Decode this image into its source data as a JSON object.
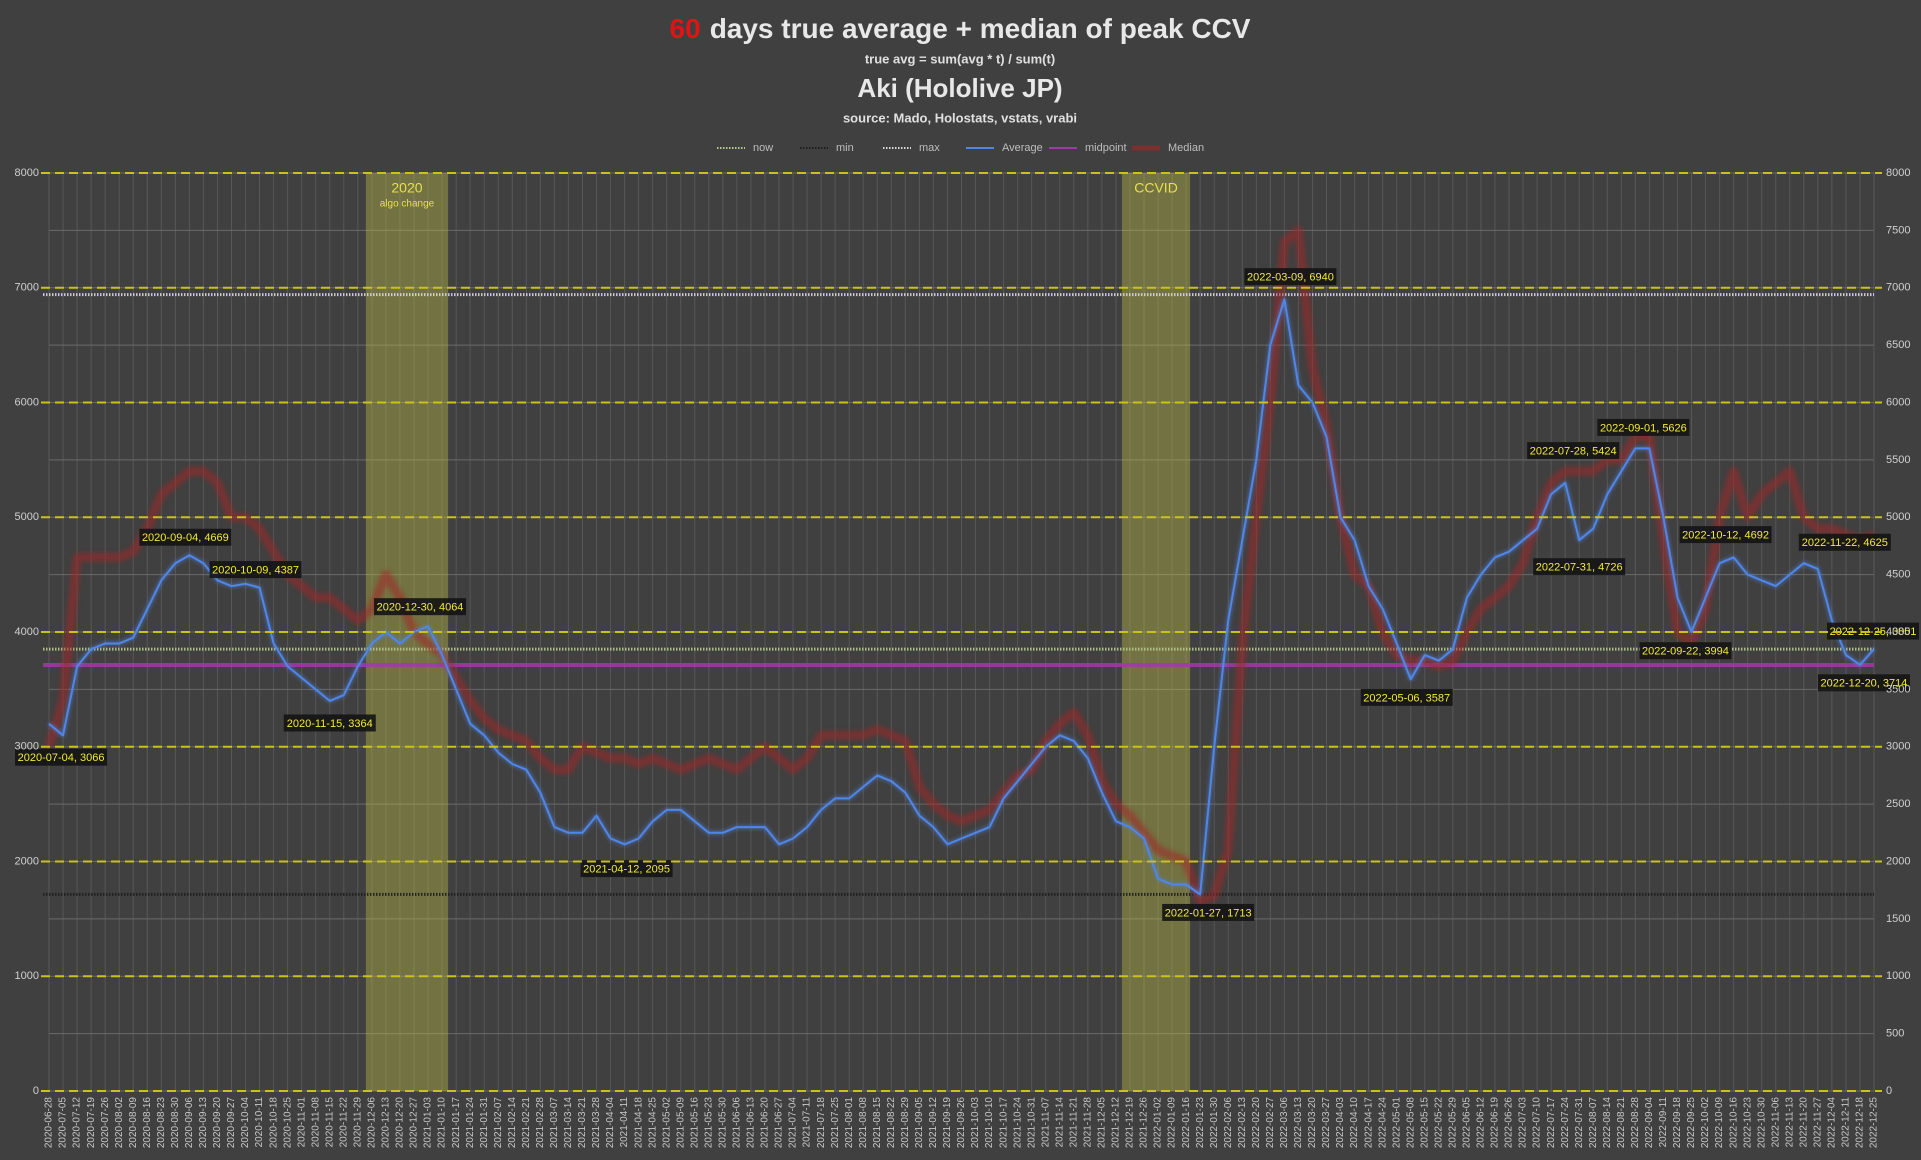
{
  "chart_data": {
    "type": "line",
    "title_highlight": "60",
    "title": "days true average + median of peak CCV",
    "subtitle": "true avg = sum(avg * t) / sum(t)",
    "channel": "Aki (Hololive JP)",
    "source": "source: Mado, Holostats, vstats, vrabi",
    "ylim": [
      0,
      8000
    ],
    "yticks": [
      0,
      1000,
      2000,
      3000,
      4000,
      5000,
      6000,
      7000,
      8000
    ],
    "y2lim": [
      0,
      8000
    ],
    "y2ticks": [
      0,
      500,
      1000,
      1500,
      2000,
      2500,
      3000,
      3500,
      4000,
      4500,
      5000,
      5500,
      6000,
      6500,
      7000,
      7500,
      8000
    ],
    "grid": true,
    "legend": "top",
    "x": [
      "2020-06-28",
      "2020-07-05",
      "2020-07-12",
      "2020-07-19",
      "2020-07-26",
      "2020-08-02",
      "2020-08-09",
      "2020-08-16",
      "2020-08-23",
      "2020-08-30",
      "2020-09-06",
      "2020-09-13",
      "2020-09-20",
      "2020-09-27",
      "2020-10-04",
      "2020-10-11",
      "2020-10-18",
      "2020-10-25",
      "2020-11-01",
      "2020-11-08",
      "2020-11-15",
      "2020-11-22",
      "2020-11-29",
      "2020-12-06",
      "2020-12-13",
      "2020-12-20",
      "2020-12-27",
      "2021-01-03",
      "2021-01-10",
      "2021-01-17",
      "2021-01-24",
      "2021-01-31",
      "2021-02-07",
      "2021-02-14",
      "2021-02-21",
      "2021-02-28",
      "2021-03-07",
      "2021-03-14",
      "2021-03-21",
      "2021-03-28",
      "2021-04-04",
      "2021-04-11",
      "2021-04-18",
      "2021-04-25",
      "2021-05-02",
      "2021-05-09",
      "2021-05-16",
      "2021-05-23",
      "2021-05-30",
      "2021-06-06",
      "2021-06-13",
      "2021-06-20",
      "2021-06-27",
      "2021-07-04",
      "2021-07-11",
      "2021-07-18",
      "2021-07-25",
      "2021-08-01",
      "2021-08-08",
      "2021-08-15",
      "2021-08-22",
      "2021-08-29",
      "2021-09-05",
      "2021-09-12",
      "2021-09-19",
      "2021-09-26",
      "2021-10-03",
      "2021-10-10",
      "2021-10-17",
      "2021-10-24",
      "2021-10-31",
      "2021-11-07",
      "2021-11-14",
      "2021-11-21",
      "2021-11-28",
      "2021-12-05",
      "2021-12-12",
      "2021-12-19",
      "2021-12-26",
      "2022-01-02",
      "2022-01-09",
      "2022-01-16",
      "2022-01-23",
      "2022-01-30",
      "2022-02-06",
      "2022-02-13",
      "2022-02-20",
      "2022-02-27",
      "2022-03-06",
      "2022-03-13",
      "2022-03-20",
      "2022-03-27",
      "2022-04-03",
      "2022-04-10",
      "2022-04-17",
      "2022-04-24",
      "2022-05-01",
      "2022-05-08",
      "2022-05-15",
      "2022-05-22",
      "2022-05-29",
      "2022-06-05",
      "2022-06-12",
      "2022-06-19",
      "2022-06-26",
      "2022-07-03",
      "2022-07-10",
      "2022-07-17",
      "2022-07-24",
      "2022-07-31",
      "2022-08-07",
      "2022-08-14",
      "2022-08-21",
      "2022-08-28",
      "2022-09-04",
      "2022-09-11",
      "2022-09-18",
      "2022-09-25",
      "2022-10-02",
      "2022-10-09",
      "2022-10-16",
      "2022-10-23",
      "2022-10-30",
      "2022-11-06",
      "2022-11-13",
      "2022-11-20",
      "2022-11-27",
      "2022-12-04",
      "2022-12-11",
      "2022-12-18",
      "2022-12-25"
    ],
    "series": [
      {
        "name": "now",
        "color": "#b9c88f",
        "style": "dotted",
        "value": 3851
      },
      {
        "name": "min",
        "color": "#1e1e1e",
        "style": "dotted",
        "value": 1713
      },
      {
        "name": "max",
        "color": "#d8d8d8",
        "style": "dotted",
        "value": 6940
      },
      {
        "name": "Average",
        "color": "#4f86e8",
        "style": "solid",
        "values": [
          3200,
          3100,
          3700,
          3850,
          3900,
          3900,
          3950,
          4200,
          4450,
          4600,
          4669,
          4600,
          4450,
          4400,
          4420,
          4387,
          3900,
          3700,
          3600,
          3500,
          3400,
          3450,
          3700,
          3900,
          4000,
          3900,
          4000,
          4050,
          3800,
          3500,
          3200,
          3100,
          2950,
          2850,
          2800,
          2600,
          2300,
          2250,
          2250,
          2400,
          2200,
          2150,
          2200,
          2350,
          2450,
          2450,
          2350,
          2250,
          2250,
          2300,
          2300,
          2300,
          2150,
          2200,
          2300,
          2450,
          2550,
          2550,
          2650,
          2750,
          2700,
          2600,
          2400,
          2300,
          2150,
          2200,
          2250,
          2300,
          2550,
          2700,
          2850,
          3000,
          3100,
          3050,
          2900,
          2600,
          2350,
          2300,
          2200,
          1850,
          1800,
          1800,
          1713,
          3000,
          4100,
          4800,
          5500,
          6500,
          6900,
          6150,
          6000,
          5700,
          5000,
          4800,
          4400,
          4200,
          3900,
          3587,
          3800,
          3750,
          3850,
          4300,
          4500,
          4650,
          4700,
          4800,
          4900,
          5200,
          5300,
          4800,
          4900,
          5200,
          5400,
          5600,
          5600,
          5000,
          4300,
          4000,
          4300,
          4600,
          4650,
          4500,
          4450,
          4400,
          4500,
          4600,
          4550,
          4100,
          3800,
          3714,
          3851
        ]
      },
      {
        "name": "midpoint",
        "color": "#a03aa8",
        "style": "solid",
        "value": 3712
      },
      {
        "name": "Median",
        "color": "#a32727",
        "style": "thick",
        "values": [
          3000,
          3400,
          4650,
          4650,
          4650,
          4650,
          4700,
          4900,
          5200,
          5300,
          5400,
          5400,
          5300,
          5000,
          5000,
          4900,
          4700,
          4500,
          4400,
          4300,
          4300,
          4200,
          4100,
          4200,
          4500,
          4300,
          4000,
          3900,
          3800,
          3600,
          3400,
          3250,
          3150,
          3100,
          3050,
          2900,
          2800,
          2800,
          3000,
          2950,
          2900,
          2900,
          2850,
          2900,
          2850,
          2800,
          2850,
          2900,
          2850,
          2800,
          2900,
          3000,
          2900,
          2800,
          2900,
          3100,
          3100,
          3100,
          3100,
          3150,
          3100,
          3050,
          2650,
          2500,
          2400,
          2350,
          2400,
          2450,
          2600,
          2750,
          2800,
          3050,
          3200,
          3300,
          3100,
          2700,
          2500,
          2400,
          2250,
          2100,
          2050,
          2000,
          1650,
          1700,
          2100,
          3900,
          5000,
          6000,
          7400,
          7500,
          6300,
          5800,
          5000,
          4500,
          4400,
          4000,
          3800,
          3750,
          3750,
          3700,
          3750,
          4000,
          4200,
          4300,
          4400,
          4600,
          5000,
          5300,
          5400,
          5400,
          5400,
          5500,
          5500,
          5700,
          5700,
          4800,
          4000,
          3900,
          4200,
          5000,
          5400,
          5000,
          5200,
          5300,
          5400,
          5000,
          4900,
          4900,
          4850,
          4800,
          4850
        ]
      }
    ],
    "bands": [
      {
        "start": "2020-12-03",
        "end": "2021-01-13",
        "label": "2020",
        "sublabel": "algo change"
      },
      {
        "start": "2021-12-15",
        "end": "2022-01-18",
        "label": "CCVID"
      }
    ],
    "annotations": [
      {
        "text": "2020-07-04, 3066",
        "x": "2020-07-04",
        "y": 3066
      },
      {
        "text": "2020-09-04, 4669",
        "x": "2020-09-04",
        "y": 4669
      },
      {
        "text": "2020-10-09, 4387",
        "x": "2020-10-09",
        "y": 4387
      },
      {
        "text": "2020-11-15, 3364",
        "x": "2020-11-15",
        "y": 3364
      },
      {
        "text": "2020-12-30, 4064",
        "x": "2020-12-30",
        "y": 4064
      },
      {
        "text": "2021-04-12, 2095",
        "x": "2021-04-12",
        "y": 2095
      },
      {
        "text": "2022-01-27, 1713",
        "x": "2022-01-27",
        "y": 1713
      },
      {
        "text": "2022-03-09, 6940",
        "x": "2022-03-09",
        "y": 6940
      },
      {
        "text": "2022-05-06, 3587",
        "x": "2022-05-06",
        "y": 3587
      },
      {
        "text": "2022-07-28, 5424",
        "x": "2022-07-28",
        "y": 5424
      },
      {
        "text": "2022-07-31, 4726",
        "x": "2022-07-31",
        "y": 4726
      },
      {
        "text": "2022-09-01, 5626",
        "x": "2022-09-01",
        "y": 5626
      },
      {
        "text": "2022-09-22, 3994",
        "x": "2022-09-22",
        "y": 3994
      },
      {
        "text": "2022-10-12, 4692",
        "x": "2022-10-12",
        "y": 4692
      },
      {
        "text": "2022-11-22, 4625",
        "x": "2022-11-22",
        "y": 4625
      },
      {
        "text": "2022-12-25, 3851",
        "x": "2022-12-25",
        "y": 3851
      },
      {
        "text": "2022-12-20, 3714",
        "x": "2022-12-20",
        "y": 3714
      }
    ]
  }
}
